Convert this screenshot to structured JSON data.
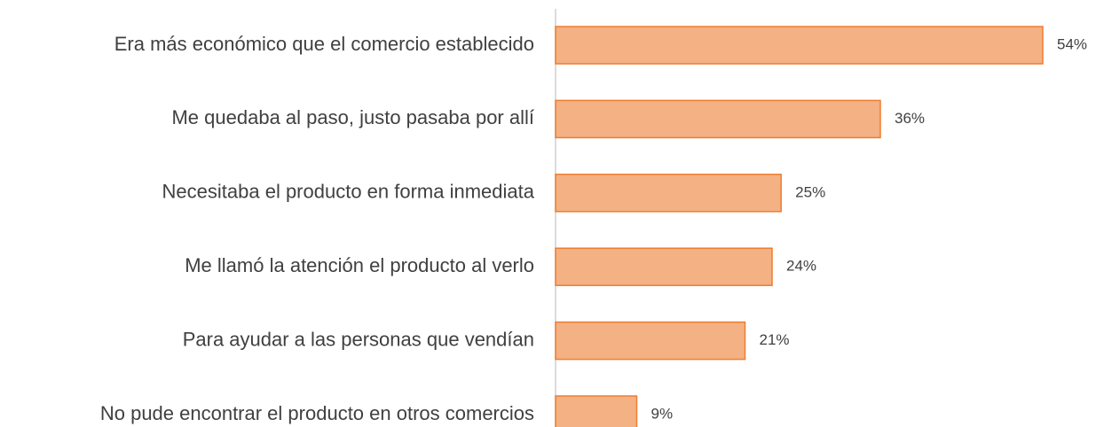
{
  "chart_data": {
    "type": "bar",
    "orientation": "horizontal",
    "categories": [
      "Era más económico que el comercio establecido",
      "Me quedaba al paso, justo pasaba por allí",
      "Necesitaba el producto en forma inmediata",
      "Me llamó la atención el producto al verlo",
      "Para ayudar a las personas que vendían",
      "No pude encontrar el producto en otros comercios"
    ],
    "values": [
      54,
      36,
      25,
      24,
      21,
      9
    ],
    "value_labels": [
      "54%",
      "36%",
      "25%",
      "24%",
      "21%",
      "9%"
    ],
    "color": "#f4b183",
    "edge_color": "#ed7d31"
  }
}
